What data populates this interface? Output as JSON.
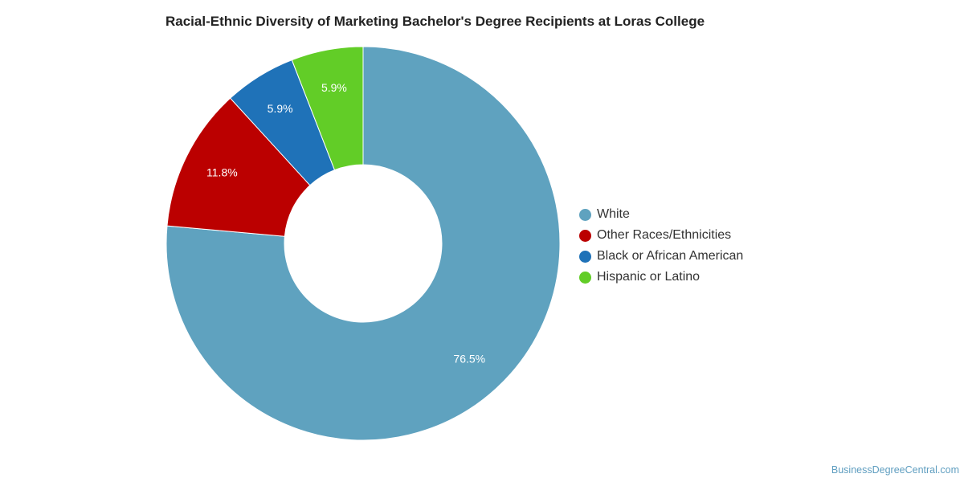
{
  "chart_data": {
    "type": "pie",
    "title": "Racial-Ethnic Diversity of Marketing Bachelor's Degree Recipients at Loras College",
    "categories": [
      "White",
      "Other Races/Ethnicities",
      "Black or African American",
      "Hispanic or Latino"
    ],
    "values": [
      76.5,
      11.8,
      5.9,
      5.9
    ],
    "data_labels": [
      "76.5%",
      "11.8%",
      "5.9%",
      "5.9%"
    ],
    "colors": [
      "#5fa2bf",
      "#bb0000",
      "#1f72b8",
      "#62cd27"
    ],
    "donut": true,
    "legend_position": "right"
  },
  "watermark": "BusinessDegreeCentral.com"
}
